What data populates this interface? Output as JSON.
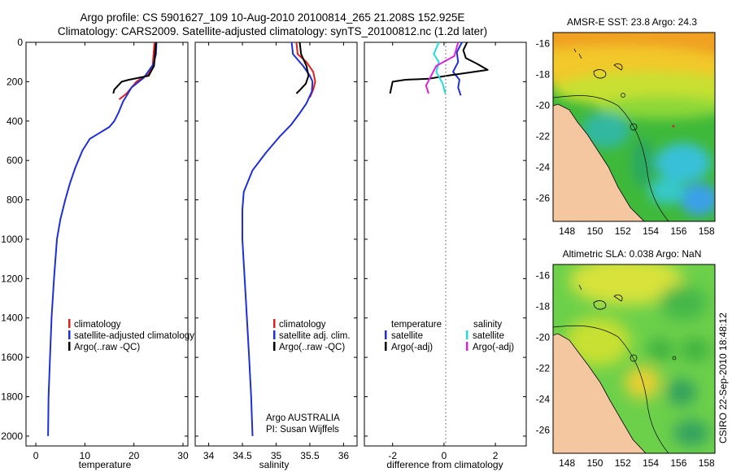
{
  "header": {
    "title_line1": "Argo profile: CS 5901627_109 10-Aug-2010 20100814_265 21.208S 152.925E",
    "title_line2": "Climatology: CARS2009. Satellite-adjusted climatology: synTS_20100812.nc (1.2d later)"
  },
  "credit": "CSIRO 22-Sep-2010 18:48:12",
  "colors": {
    "climatology": "#e02020",
    "satellite": "#1f2fd8",
    "argo": "#000000",
    "sat_sal": "#22dddd",
    "argo_sal": "#dd22dd",
    "land": "#f4c7a0"
  },
  "chart_data": [
    {
      "type": "line",
      "id": "temperature",
      "xlabel": "temperature",
      "ylabel": "",
      "xlim": [
        -2,
        31
      ],
      "ylim": [
        2050,
        0
      ],
      "xticks": [
        "0",
        "10",
        "20",
        "30"
      ],
      "yticks": [
        "0",
        "200",
        "400",
        "600",
        "800",
        "1000",
        "1200",
        "1400",
        "1600",
        "1800",
        "2000"
      ],
      "legend": [
        "climatology",
        "satellite-adjusted climatology",
        "Argo(..raw -QC)"
      ],
      "series": [
        {
          "name": "climatology",
          "points": [
            [
              24.2,
              0
            ],
            [
              24.0,
              60
            ],
            [
              23.8,
              120
            ],
            [
              23,
              160
            ],
            [
              20.5,
              200
            ],
            [
              18.5,
              260
            ],
            [
              17,
              290
            ]
          ]
        },
        {
          "name": "satellite-adjusted climatology",
          "points": [
            [
              24.6,
              0
            ],
            [
              24.5,
              60
            ],
            [
              24,
              110
            ],
            [
              22,
              180
            ],
            [
              19.5,
              230
            ],
            [
              17.8,
              300
            ],
            [
              16.8,
              360
            ],
            [
              16,
              400
            ],
            [
              15,
              430
            ],
            [
              13,
              460
            ],
            [
              11,
              490
            ],
            [
              9.5,
              550
            ],
            [
              8,
              640
            ],
            [
              6.9,
              720
            ],
            [
              6,
              800
            ],
            [
              5,
              900
            ],
            [
              4.3,
              1000
            ],
            [
              3.7,
              1200
            ],
            [
              3.2,
              1400
            ],
            [
              2.9,
              1600
            ],
            [
              2.6,
              1800
            ],
            [
              2.5,
              2000
            ]
          ]
        },
        {
          "name": "Argo(..raw -QC)",
          "points": [
            [
              24.5,
              0
            ],
            [
              24.3,
              60
            ],
            [
              24.1,
              120
            ],
            [
              23,
              170
            ],
            [
              19,
              190
            ],
            [
              17.5,
              200
            ],
            [
              16,
              240
            ],
            [
              15.8,
              260
            ]
          ]
        }
      ]
    },
    {
      "type": "line",
      "id": "salinity",
      "xlabel": "salinity",
      "xlim": [
        33.8,
        36.2
      ],
      "ylim": [
        2050,
        0
      ],
      "xticks": [
        "34",
        "34.5",
        "35",
        "35.5",
        "36"
      ],
      "legend": [
        "climatology",
        "satellite adj. clim.",
        "Argo(..raw -QC)"
      ],
      "footer": [
        "Argo AUSTRALIA",
        "PI: Susan Wijffels"
      ],
      "series": [
        {
          "name": "climatology",
          "points": [
            [
              35.3,
              0
            ],
            [
              35.32,
              60
            ],
            [
              35.45,
              100
            ],
            [
              35.55,
              150
            ],
            [
              35.58,
              200
            ],
            [
              35.55,
              240
            ],
            [
              35.5,
              280
            ]
          ]
        },
        {
          "name": "satellite adj. clim.",
          "points": [
            [
              35.23,
              0
            ],
            [
              35.25,
              60
            ],
            [
              35.4,
              120
            ],
            [
              35.5,
              170
            ],
            [
              35.54,
              200
            ],
            [
              35.53,
              250
            ],
            [
              35.45,
              310
            ],
            [
              35.35,
              360
            ],
            [
              35.22,
              420
            ],
            [
              35.05,
              480
            ],
            [
              34.85,
              560
            ],
            [
              34.65,
              650
            ],
            [
              34.52,
              760
            ],
            [
              34.5,
              850
            ],
            [
              34.5,
              1000
            ],
            [
              34.55,
              1300
            ],
            [
              34.6,
              1600
            ],
            [
              34.63,
              1800
            ],
            [
              34.65,
              2000
            ]
          ]
        },
        {
          "name": "Argo(..raw -QC)",
          "points": [
            [
              35.35,
              0
            ],
            [
              35.37,
              60
            ],
            [
              35.45,
              120
            ],
            [
              35.48,
              170
            ],
            [
              35.44,
              210
            ],
            [
              35.36,
              240
            ],
            [
              35.3,
              260
            ]
          ]
        }
      ]
    },
    {
      "type": "line",
      "id": "difference",
      "xlabel": "difference from climatology",
      "xlim": [
        -3.1,
        3.2
      ],
      "ylim": [
        2050,
        0
      ],
      "xticks": [
        "-2",
        "0",
        "2"
      ],
      "legend_left_title": "temperature",
      "legend_right_title": "salinity",
      "legend_left": [
        "satellite",
        "Argo(-adj)"
      ],
      "legend_right": [
        "satellite",
        "Argo(-adj)"
      ],
      "series": [
        {
          "name": "temperature satellite",
          "points": [
            [
              0.7,
              0
            ],
            [
              0.5,
              50
            ],
            [
              0.55,
              100
            ],
            [
              0.35,
              150
            ],
            [
              0.6,
              190
            ],
            [
              0.55,
              230
            ],
            [
              0.65,
              270
            ]
          ]
        },
        {
          "name": "temperature Argo(-adj)",
          "points": [
            [
              0.9,
              0
            ],
            [
              0.75,
              40
            ],
            [
              0.85,
              80
            ],
            [
              1.3,
              110
            ],
            [
              1.7,
              140
            ],
            [
              0.1,
              170
            ],
            [
              -0.6,
              185
            ],
            [
              -1.5,
              190
            ],
            [
              -2.0,
              200
            ],
            [
              -2.1,
              260
            ]
          ]
        },
        {
          "name": "salinity satellite",
          "points": [
            [
              -0.2,
              0
            ],
            [
              -0.4,
              60
            ],
            [
              -0.2,
              100
            ],
            [
              -0.3,
              150
            ],
            [
              -0.05,
              210
            ],
            [
              0.05,
              260
            ]
          ]
        },
        {
          "name": "salinity Argo(-adj)",
          "points": [
            [
              0.55,
              0
            ],
            [
              0.4,
              70
            ],
            [
              -0.3,
              120
            ],
            [
              -0.5,
              170
            ],
            [
              -0.7,
              220
            ],
            [
              -0.6,
              260
            ]
          ]
        }
      ]
    },
    {
      "type": "heatmap",
      "id": "sst-map",
      "title": "AMSR-E SST: 23.8 Argo: 24.3",
      "xticks": [
        "148",
        "150",
        "152",
        "154",
        "156",
        "158"
      ],
      "yticks": [
        "-16",
        "-18",
        "-20",
        "-22",
        "-24",
        "-26"
      ]
    },
    {
      "type": "heatmap",
      "id": "sla-map",
      "title": "Altimetric SLA: 0.038 Argo: NaN",
      "xticks": [
        "148",
        "150",
        "152",
        "154",
        "156",
        "158"
      ],
      "yticks": [
        "-16",
        "-18",
        "-20",
        "-22",
        "-24",
        "-26"
      ]
    }
  ]
}
